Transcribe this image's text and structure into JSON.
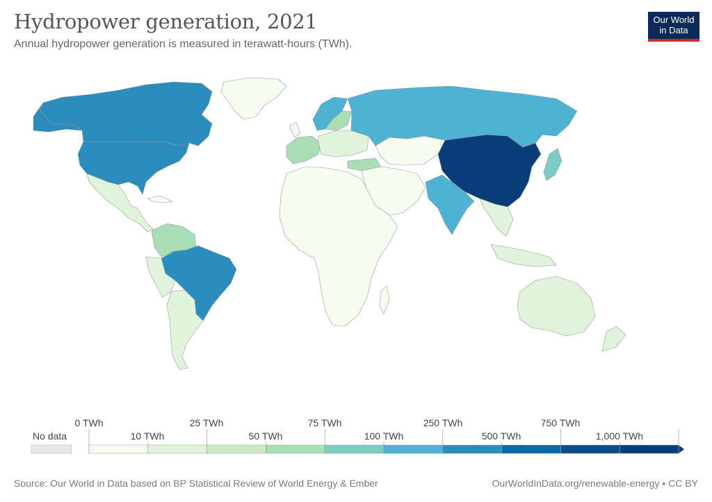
{
  "title": "Hydropower generation, 2021",
  "subtitle": "Annual hydropower generation is measured in terawatt-hours (TWh).",
  "logo": {
    "line1": "Our World",
    "line2": "in Data",
    "bg": "#0b2a57",
    "accent": "#d42b21"
  },
  "legend": {
    "no_data_label": "No data",
    "no_data_color": "#e8e8e8",
    "bins": [
      {
        "color": "#f7fcf0"
      },
      {
        "color": "#e0f3db"
      },
      {
        "color": "#ccebc5"
      },
      {
        "color": "#a8ddb5"
      },
      {
        "color": "#7bccc4"
      },
      {
        "color": "#4eb3d3"
      },
      {
        "color": "#2b8cbe"
      },
      {
        "color": "#0868ac"
      },
      {
        "color": "#084c8c"
      },
      {
        "color": "#083d7a"
      }
    ],
    "labels_top": [
      "0 TWh",
      "25 TWh",
      "75 TWh",
      "250 TWh",
      "750 TWh"
    ],
    "labels_bottom": [
      "10 TWh",
      "50 TWh",
      "100 TWh",
      "500 TWh",
      "1,000 TWh"
    ]
  },
  "regions": {
    "china": {
      "color": "#083d7a"
    },
    "brazil": {
      "color": "#2b8cbe"
    },
    "canada": {
      "color": "#2b8cbe"
    },
    "usa": {
      "color": "#2b8cbe"
    },
    "russia": {
      "color": "#4eb3d3"
    },
    "india": {
      "color": "#4eb3d3"
    },
    "norway": {
      "color": "#4eb3d3"
    },
    "japan": {
      "color": "#7bccc4"
    },
    "venezuela": {
      "color": "#a8ddb5"
    },
    "default_land": {
      "color": "#f7fcf0"
    },
    "light_land": {
      "color": "#e0f3db"
    }
  },
  "footer": {
    "source": "Source: Our World in Data based on BP Statistical Review of World Energy & Ember",
    "url": "OurWorldInData.org/renewable-energy • CC BY"
  }
}
